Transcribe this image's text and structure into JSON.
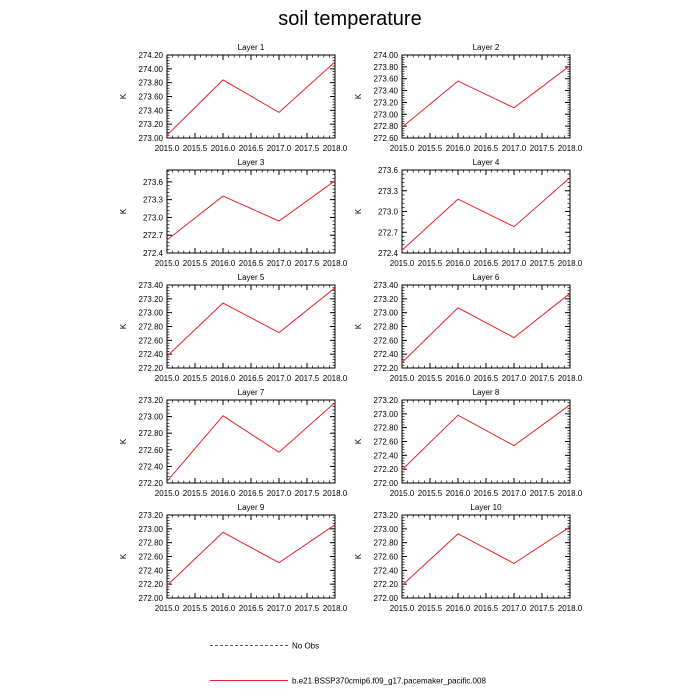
{
  "title": "soil temperature",
  "legend": {
    "items": [
      {
        "label": "No Obs",
        "style": "dashed",
        "color": "#5a4fa8"
      },
      {
        "label": "b.e21.BSSP370cmip6.f09_g17.pacemaker_pacific.008",
        "style": "solid",
        "color": "#e6242b"
      }
    ]
  },
  "colors": {
    "series": "#e6242b",
    "axis": "#000000"
  },
  "chart_data": [
    {
      "type": "line",
      "title": "Layer 1",
      "xlabel": "",
      "ylabel": "K",
      "x": [
        2015.0,
        2016.0,
        2017.0,
        2018.0
      ],
      "xlim": [
        2015.0,
        2018.0
      ],
      "xticks": [
        "2015.0",
        "2015.5",
        "2016.0",
        "2016.5",
        "2017.0",
        "2017.5",
        "2018.0"
      ],
      "ylim": [
        273.0,
        274.2
      ],
      "yticks": [
        "273.00",
        "273.20",
        "273.40",
        "273.60",
        "273.80",
        "274.00",
        "274.20"
      ],
      "series": [
        {
          "values": [
            273.04,
            273.84,
            273.37,
            274.1
          ]
        }
      ]
    },
    {
      "type": "line",
      "title": "Layer 2",
      "xlabel": "",
      "ylabel": "K",
      "x": [
        2015.0,
        2016.0,
        2017.0,
        2018.0
      ],
      "xlim": [
        2015.0,
        2018.0
      ],
      "xticks": [
        "2015.0",
        "2015.5",
        "2016.0",
        "2016.5",
        "2017.0",
        "2017.5",
        "2018.0"
      ],
      "ylim": [
        272.6,
        274.0
      ],
      "yticks": [
        "272.60",
        "272.80",
        "273.00",
        "273.20",
        "273.40",
        "273.60",
        "273.80",
        "274.00"
      ],
      "series": [
        {
          "values": [
            272.78,
            273.56,
            273.11,
            273.82
          ]
        }
      ]
    },
    {
      "type": "line",
      "title": "Layer 3",
      "xlabel": "",
      "ylabel": "K",
      "x": [
        2015.0,
        2016.0,
        2017.0,
        2018.0
      ],
      "xlim": [
        2015.0,
        2018.0
      ],
      "xticks": [
        "2015.0",
        "2015.5",
        "2016.0",
        "2016.5",
        "2017.0",
        "2017.5",
        "2018.0"
      ],
      "ylim": [
        272.4,
        273.8
      ],
      "yticks": [
        "272.4",
        "272.7",
        "273.0",
        "273.3",
        "273.6"
      ],
      "series": [
        {
          "values": [
            272.62,
            273.36,
            272.94,
            273.62
          ]
        }
      ]
    },
    {
      "type": "line",
      "title": "Layer 4",
      "xlabel": "",
      "ylabel": "K",
      "x": [
        2015.0,
        2016.0,
        2017.0,
        2018.0
      ],
      "xlim": [
        2015.0,
        2018.0
      ],
      "xticks": [
        "2015.0",
        "2015.5",
        "2016.0",
        "2016.5",
        "2017.0",
        "2017.5",
        "2018.0"
      ],
      "ylim": [
        272.4,
        273.6
      ],
      "yticks": [
        "272.4",
        "272.7",
        "273.0",
        "273.3",
        "273.6"
      ],
      "series": [
        {
          "values": [
            272.44,
            273.18,
            272.78,
            273.49
          ]
        }
      ]
    },
    {
      "type": "line",
      "title": "Layer 5",
      "xlabel": "",
      "ylabel": "K",
      "x": [
        2015.0,
        2016.0,
        2017.0,
        2018.0
      ],
      "xlim": [
        2015.0,
        2018.0
      ],
      "xticks": [
        "2015.0",
        "2015.5",
        "2016.0",
        "2016.5",
        "2017.0",
        "2017.5",
        "2018.0"
      ],
      "ylim": [
        272.2,
        273.4
      ],
      "yticks": [
        "272.20",
        "272.40",
        "272.60",
        "272.80",
        "273.00",
        "273.20",
        "273.40"
      ],
      "series": [
        {
          "values": [
            272.37,
            273.14,
            272.71,
            273.36
          ]
        }
      ]
    },
    {
      "type": "line",
      "title": "Layer 6",
      "xlabel": "",
      "ylabel": "K",
      "x": [
        2015.0,
        2016.0,
        2017.0,
        2018.0
      ],
      "xlim": [
        2015.0,
        2018.0
      ],
      "xticks": [
        "2015.0",
        "2015.5",
        "2016.0",
        "2016.5",
        "2017.0",
        "2017.5",
        "2018.0"
      ],
      "ylim": [
        272.2,
        273.4
      ],
      "yticks": [
        "272.20",
        "272.40",
        "272.60",
        "272.80",
        "273.00",
        "273.20",
        "273.40"
      ],
      "series": [
        {
          "values": [
            272.28,
            273.07,
            272.64,
            273.28
          ]
        }
      ]
    },
    {
      "type": "line",
      "title": "Layer 7",
      "xlabel": "",
      "ylabel": "K",
      "x": [
        2015.0,
        2016.0,
        2017.0,
        2018.0
      ],
      "xlim": [
        2015.0,
        2018.0
      ],
      "xticks": [
        "2015.0",
        "2015.5",
        "2016.0",
        "2016.5",
        "2017.0",
        "2017.5",
        "2018.0"
      ],
      "ylim": [
        272.2,
        273.2
      ],
      "yticks": [
        "272.20",
        "272.40",
        "272.60",
        "272.80",
        "273.00",
        "273.20"
      ],
      "series": [
        {
          "values": [
            272.22,
            273.01,
            272.57,
            273.17
          ]
        }
      ]
    },
    {
      "type": "line",
      "title": "Layer 8",
      "xlabel": "",
      "ylabel": "K",
      "x": [
        2015.0,
        2016.0,
        2017.0,
        2018.0
      ],
      "xlim": [
        2015.0,
        2018.0
      ],
      "xticks": [
        "2015.0",
        "2015.5",
        "2016.0",
        "2016.5",
        "2017.0",
        "2017.5",
        "2018.0"
      ],
      "ylim": [
        272.0,
        273.2
      ],
      "yticks": [
        "272.00",
        "272.20",
        "272.40",
        "272.60",
        "272.80",
        "273.00",
        "273.20"
      ],
      "series": [
        {
          "values": [
            272.19,
            272.98,
            272.54,
            273.13
          ]
        }
      ]
    },
    {
      "type": "line",
      "title": "Layer 9",
      "xlabel": "",
      "ylabel": "K",
      "x": [
        2015.0,
        2016.0,
        2017.0,
        2018.0
      ],
      "xlim": [
        2015.0,
        2018.0
      ],
      "xticks": [
        "2015.0",
        "2015.5",
        "2016.0",
        "2016.5",
        "2017.0",
        "2017.5",
        "2018.0"
      ],
      "ylim": [
        272.0,
        273.2
      ],
      "yticks": [
        "272.00",
        "272.20",
        "272.40",
        "272.60",
        "272.80",
        "273.00",
        "273.20"
      ],
      "series": [
        {
          "values": [
            272.18,
            272.95,
            272.51,
            273.06
          ]
        }
      ]
    },
    {
      "type": "line",
      "title": "Layer 10",
      "xlabel": "",
      "ylabel": "K",
      "x": [
        2015.0,
        2016.0,
        2017.0,
        2018.0
      ],
      "xlim": [
        2015.0,
        2018.0
      ],
      "xticks": [
        "2015.0",
        "2015.5",
        "2016.0",
        "2016.5",
        "2017.0",
        "2017.5",
        "2018.0"
      ],
      "ylim": [
        272.0,
        273.2
      ],
      "yticks": [
        "272.00",
        "272.20",
        "272.40",
        "272.60",
        "272.80",
        "273.00",
        "273.20"
      ],
      "series": [
        {
          "values": [
            272.18,
            272.93,
            272.5,
            273.03
          ]
        }
      ]
    }
  ]
}
